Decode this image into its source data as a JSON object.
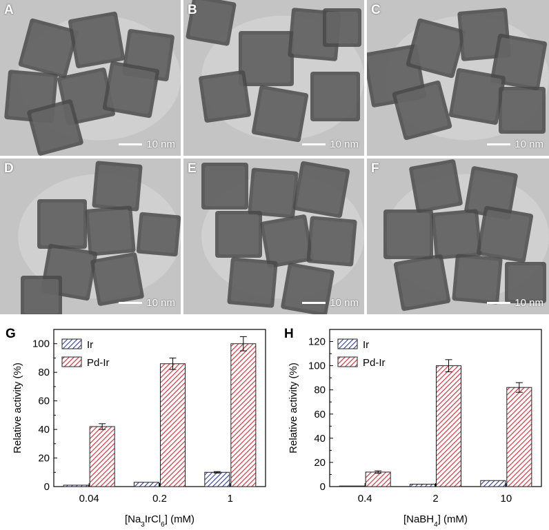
{
  "tem_panels": [
    {
      "label": "A",
      "scale": "10 nm"
    },
    {
      "label": "B",
      "scale": "10 nm"
    },
    {
      "label": "C",
      "scale": "10 nm"
    },
    {
      "label": "D",
      "scale": "10 nm"
    },
    {
      "label": "E",
      "scale": "10 nm"
    },
    {
      "label": "F",
      "scale": "10 nm"
    }
  ],
  "colors": {
    "ir": "#2b3aa8",
    "pd_ir": "#e0222e",
    "tem_background": "#bcbcbc",
    "cube": "#4a4a4a"
  },
  "chart_data": [
    {
      "panel_label": "G",
      "type": "bar",
      "categories": [
        "0.04",
        "0.2",
        "1"
      ],
      "xlabel_parts": [
        "[Na",
        "3",
        "IrCl",
        "6",
        "] (mM)"
      ],
      "ylabel": "Relative activity (%)",
      "ylim": [
        0,
        110
      ],
      "yticks": [
        "0",
        "20",
        "40",
        "60",
        "80",
        "100"
      ],
      "legend_placement": "top-left",
      "series": [
        {
          "name": "Ir",
          "values": [
            1,
            3,
            10
          ],
          "errors": [
            0,
            0,
            0.5
          ]
        },
        {
          "name": "Pd-Ir",
          "values": [
            42,
            86,
            100
          ],
          "errors": [
            2,
            4,
            5
          ]
        }
      ]
    },
    {
      "panel_label": "H",
      "type": "bar",
      "categories": [
        "0.4",
        "2",
        "10"
      ],
      "xlabel_parts": [
        "[NaBH",
        "4",
        "] (mM)"
      ],
      "ylabel": "Relative activity (%)",
      "ylim": [
        0,
        130
      ],
      "yticks": [
        "0",
        "20",
        "40",
        "60",
        "80",
        "100",
        "120"
      ],
      "legend_placement": "top-left",
      "series": [
        {
          "name": "Ir",
          "values": [
            0.5,
            2,
            5
          ],
          "errors": [
            0,
            0,
            0
          ]
        },
        {
          "name": "Pd-Ir",
          "values": [
            12,
            100,
            82
          ],
          "errors": [
            1,
            5,
            4
          ]
        }
      ]
    }
  ]
}
